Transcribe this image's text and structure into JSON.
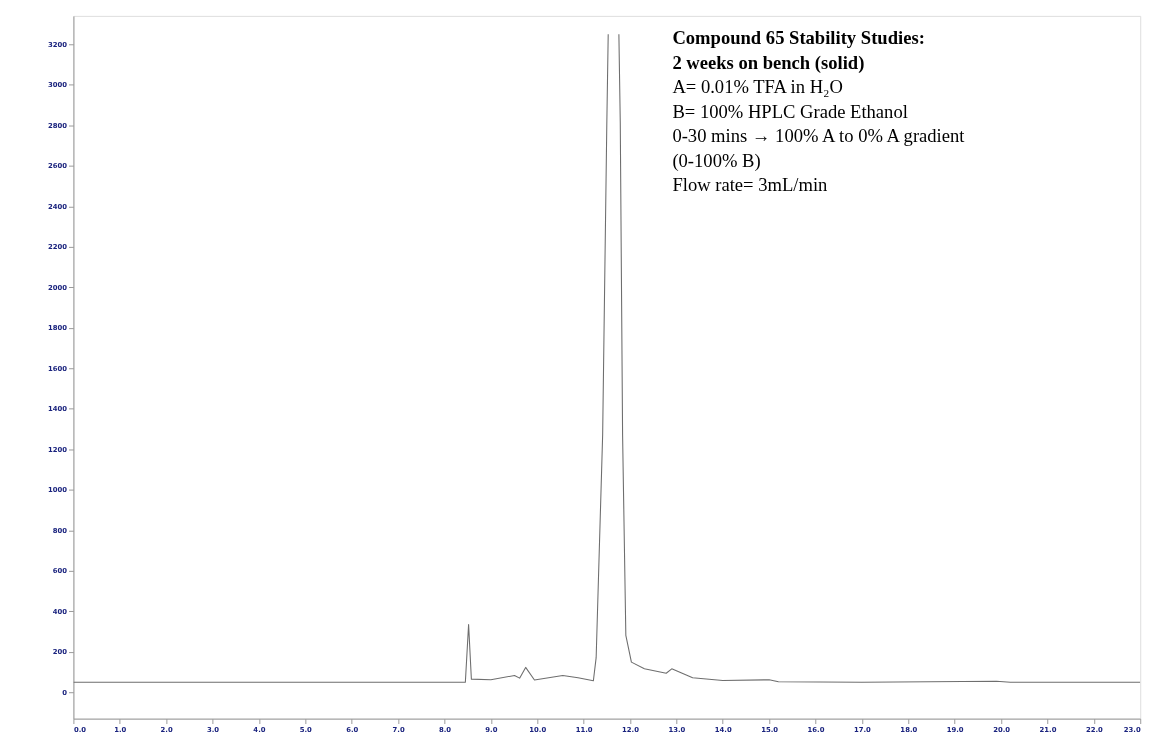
{
  "chart_data": {
    "type": "line",
    "title": "Compound 65 Stability Studies:",
    "subtitle": "2 weeks on bench (solid)",
    "annotations": [
      "A= 0.01% TFA in H₂O",
      "B= 100% HPLC Grade Ethanol",
      "0-30 mins → 100% A to 0% A gradient",
      "(0-100% B)",
      "Flow rate= 3mL/min"
    ],
    "x": [
      0,
      8.45,
      8.52,
      8.58,
      9.0,
      9.51,
      9.62,
      9.75,
      9.94,
      10.55,
      10.88,
      11.21,
      11.27,
      11.41,
      11.5,
      11.53,
      11.55,
      11.74,
      11.76,
      11.79,
      11.84,
      11.91,
      12.03,
      12.31,
      12.78,
      12.9,
      13.35,
      14.0,
      15.0,
      15.2,
      17.0,
      19.9,
      20.2,
      23.0
    ],
    "series": [
      {
        "color": "#6e6e6e",
        "values": [
          50,
          50,
          335,
          65,
          62,
          83,
          70,
          123,
          61,
          83,
          72,
          57,
          171,
          1271,
          2811,
          3250,
          null,
          null,
          3250,
          2811,
          1271,
          281,
          149,
          116,
          94,
          116,
          72,
          58,
          62,
          52,
          50,
          55,
          50,
          50
        ]
      }
    ],
    "xlim": [
      0,
      23
    ],
    "ylim": [
      -130,
      3340
    ],
    "xticks": [
      {
        "value": 0,
        "label": "0.0"
      },
      {
        "value": 1,
        "label": "1.0"
      },
      {
        "value": 2,
        "label": "2.0"
      },
      {
        "value": 3,
        "label": "3.0"
      },
      {
        "value": 4,
        "label": "4.0"
      },
      {
        "value": 5,
        "label": "5.0"
      },
      {
        "value": 6,
        "label": "6.0"
      },
      {
        "value": 7,
        "label": "7.0"
      },
      {
        "value": 8,
        "label": "8.0"
      },
      {
        "value": 9,
        "label": "9.0"
      },
      {
        "value": 10,
        "label": "10.0"
      },
      {
        "value": 11,
        "label": "11.0"
      },
      {
        "value": 12,
        "label": "12.0"
      },
      {
        "value": 13,
        "label": "13.0"
      },
      {
        "value": 14,
        "label": "14.0"
      },
      {
        "value": 15,
        "label": "15.0"
      },
      {
        "value": 16,
        "label": "16.0"
      },
      {
        "value": 17,
        "label": "17.0"
      },
      {
        "value": 18,
        "label": "18.0"
      },
      {
        "value": 19,
        "label": "19.0"
      },
      {
        "value": 20,
        "label": "20.0"
      },
      {
        "value": 21,
        "label": "21.0"
      },
      {
        "value": 22,
        "label": "22.0"
      },
      {
        "value": 23,
        "label": "23.0"
      }
    ],
    "yticks": [
      0,
      200,
      400,
      600,
      800,
      1000,
      1200,
      1400,
      1600,
      1800,
      2000,
      2200,
      2400,
      2600,
      2800,
      3000,
      3200
    ],
    "grid": false,
    "marker": "none",
    "line_style": "solid"
  }
}
